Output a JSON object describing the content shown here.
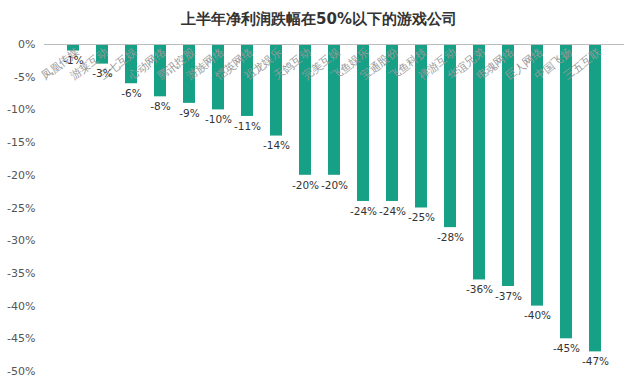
{
  "chart_data": {
    "type": "bar",
    "title": "上半年净利润跌幅在50%以下的游戏公司",
    "categories": [
      "凤凰传媒",
      "游莱互动",
      "三七互娱",
      "心动网络",
      "腾讯控股",
      "游族网络",
      "恺英网络",
      "祖龙娱乐",
      "天鸽互动",
      "完美互娱",
      "飞鱼娱乐",
      "宝通股份",
      "飞鱼科技",
      "禅游互动",
      "华谊兄弟",
      "电魂网络",
      "巨人网络",
      "中国飞扬",
      "三五互联"
    ],
    "values": [
      -1,
      -3,
      -6,
      -8,
      -9,
      -10,
      -11,
      -14,
      -20,
      -20,
      -24,
      -24,
      -25,
      -28,
      -36,
      -37,
      -40,
      -45,
      -47
    ],
    "value_labels": [
      "-1%",
      "-3%",
      "-6%",
      "-8%",
      "-9%",
      "-10%",
      "-11%",
      "-14%",
      "-20%",
      "-20%",
      "-24%",
      "-24%",
      "-25%",
      "-28%",
      "-36%",
      "-37%",
      "-40%",
      "-45%",
      "-47%"
    ],
    "data_labels": true,
    "color": "#16a085",
    "ylim": [
      -50,
      0
    ],
    "yticks": [
      {
        "value": 0,
        "label": "0%"
      },
      {
        "value": -5,
        "label": "-5%"
      },
      {
        "value": -10,
        "label": "-10%"
      },
      {
        "value": -15,
        "label": "-15%"
      },
      {
        "value": -20,
        "label": "-20%"
      },
      {
        "value": -25,
        "label": "-25%"
      },
      {
        "value": -30,
        "label": "-30%"
      },
      {
        "value": -35,
        "label": "-35%"
      },
      {
        "value": -40,
        "label": "-40%"
      },
      {
        "value": -45,
        "label": "-45%"
      },
      {
        "value": -50,
        "label": "-50%"
      }
    ],
    "grid": false
  }
}
